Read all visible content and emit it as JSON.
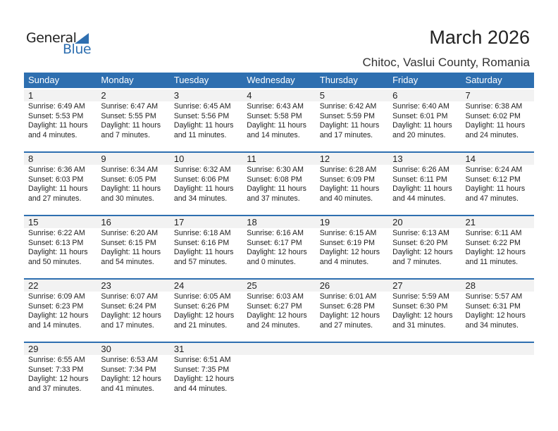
{
  "logo": {
    "general": "General",
    "blue": "Blue"
  },
  "title": "March 2026",
  "location": "Chitoc, Vaslui County, Romania",
  "colors": {
    "accent": "#2e6fb0",
    "strip": "#f2f2f2"
  },
  "weekdays": [
    "Sunday",
    "Monday",
    "Tuesday",
    "Wednesday",
    "Thursday",
    "Friday",
    "Saturday"
  ],
  "weeks": [
    [
      {
        "day": "1",
        "sunrise": "Sunrise: 6:49 AM",
        "sunset": "Sunset: 5:53 PM",
        "daylight": "Daylight: 11 hours",
        "minutes": "and 4 minutes."
      },
      {
        "day": "2",
        "sunrise": "Sunrise: 6:47 AM",
        "sunset": "Sunset: 5:55 PM",
        "daylight": "Daylight: 11 hours",
        "minutes": "and 7 minutes."
      },
      {
        "day": "3",
        "sunrise": "Sunrise: 6:45 AM",
        "sunset": "Sunset: 5:56 PM",
        "daylight": "Daylight: 11 hours",
        "minutes": "and 11 minutes."
      },
      {
        "day": "4",
        "sunrise": "Sunrise: 6:43 AM",
        "sunset": "Sunset: 5:58 PM",
        "daylight": "Daylight: 11 hours",
        "minutes": "and 14 minutes."
      },
      {
        "day": "5",
        "sunrise": "Sunrise: 6:42 AM",
        "sunset": "Sunset: 5:59 PM",
        "daylight": "Daylight: 11 hours",
        "minutes": "and 17 minutes."
      },
      {
        "day": "6",
        "sunrise": "Sunrise: 6:40 AM",
        "sunset": "Sunset: 6:01 PM",
        "daylight": "Daylight: 11 hours",
        "minutes": "and 20 minutes."
      },
      {
        "day": "7",
        "sunrise": "Sunrise: 6:38 AM",
        "sunset": "Sunset: 6:02 PM",
        "daylight": "Daylight: 11 hours",
        "minutes": "and 24 minutes."
      }
    ],
    [
      {
        "day": "8",
        "sunrise": "Sunrise: 6:36 AM",
        "sunset": "Sunset: 6:03 PM",
        "daylight": "Daylight: 11 hours",
        "minutes": "and 27 minutes."
      },
      {
        "day": "9",
        "sunrise": "Sunrise: 6:34 AM",
        "sunset": "Sunset: 6:05 PM",
        "daylight": "Daylight: 11 hours",
        "minutes": "and 30 minutes."
      },
      {
        "day": "10",
        "sunrise": "Sunrise: 6:32 AM",
        "sunset": "Sunset: 6:06 PM",
        "daylight": "Daylight: 11 hours",
        "minutes": "and 34 minutes."
      },
      {
        "day": "11",
        "sunrise": "Sunrise: 6:30 AM",
        "sunset": "Sunset: 6:08 PM",
        "daylight": "Daylight: 11 hours",
        "minutes": "and 37 minutes."
      },
      {
        "day": "12",
        "sunrise": "Sunrise: 6:28 AM",
        "sunset": "Sunset: 6:09 PM",
        "daylight": "Daylight: 11 hours",
        "minutes": "and 40 minutes."
      },
      {
        "day": "13",
        "sunrise": "Sunrise: 6:26 AM",
        "sunset": "Sunset: 6:11 PM",
        "daylight": "Daylight: 11 hours",
        "minutes": "and 44 minutes."
      },
      {
        "day": "14",
        "sunrise": "Sunrise: 6:24 AM",
        "sunset": "Sunset: 6:12 PM",
        "daylight": "Daylight: 11 hours",
        "minutes": "and 47 minutes."
      }
    ],
    [
      {
        "day": "15",
        "sunrise": "Sunrise: 6:22 AM",
        "sunset": "Sunset: 6:13 PM",
        "daylight": "Daylight: 11 hours",
        "minutes": "and 50 minutes."
      },
      {
        "day": "16",
        "sunrise": "Sunrise: 6:20 AM",
        "sunset": "Sunset: 6:15 PM",
        "daylight": "Daylight: 11 hours",
        "minutes": "and 54 minutes."
      },
      {
        "day": "17",
        "sunrise": "Sunrise: 6:18 AM",
        "sunset": "Sunset: 6:16 PM",
        "daylight": "Daylight: 11 hours",
        "minutes": "and 57 minutes."
      },
      {
        "day": "18",
        "sunrise": "Sunrise: 6:16 AM",
        "sunset": "Sunset: 6:17 PM",
        "daylight": "Daylight: 12 hours",
        "minutes": "and 0 minutes."
      },
      {
        "day": "19",
        "sunrise": "Sunrise: 6:15 AM",
        "sunset": "Sunset: 6:19 PM",
        "daylight": "Daylight: 12 hours",
        "minutes": "and 4 minutes."
      },
      {
        "day": "20",
        "sunrise": "Sunrise: 6:13 AM",
        "sunset": "Sunset: 6:20 PM",
        "daylight": "Daylight: 12 hours",
        "minutes": "and 7 minutes."
      },
      {
        "day": "21",
        "sunrise": "Sunrise: 6:11 AM",
        "sunset": "Sunset: 6:22 PM",
        "daylight": "Daylight: 12 hours",
        "minutes": "and 11 minutes."
      }
    ],
    [
      {
        "day": "22",
        "sunrise": "Sunrise: 6:09 AM",
        "sunset": "Sunset: 6:23 PM",
        "daylight": "Daylight: 12 hours",
        "minutes": "and 14 minutes."
      },
      {
        "day": "23",
        "sunrise": "Sunrise: 6:07 AM",
        "sunset": "Sunset: 6:24 PM",
        "daylight": "Daylight: 12 hours",
        "minutes": "and 17 minutes."
      },
      {
        "day": "24",
        "sunrise": "Sunrise: 6:05 AM",
        "sunset": "Sunset: 6:26 PM",
        "daylight": "Daylight: 12 hours",
        "minutes": "and 21 minutes."
      },
      {
        "day": "25",
        "sunrise": "Sunrise: 6:03 AM",
        "sunset": "Sunset: 6:27 PM",
        "daylight": "Daylight: 12 hours",
        "minutes": "and 24 minutes."
      },
      {
        "day": "26",
        "sunrise": "Sunrise: 6:01 AM",
        "sunset": "Sunset: 6:28 PM",
        "daylight": "Daylight: 12 hours",
        "minutes": "and 27 minutes."
      },
      {
        "day": "27",
        "sunrise": "Sunrise: 5:59 AM",
        "sunset": "Sunset: 6:30 PM",
        "daylight": "Daylight: 12 hours",
        "minutes": "and 31 minutes."
      },
      {
        "day": "28",
        "sunrise": "Sunrise: 5:57 AM",
        "sunset": "Sunset: 6:31 PM",
        "daylight": "Daylight: 12 hours",
        "minutes": "and 34 minutes."
      }
    ],
    [
      {
        "day": "29",
        "sunrise": "Sunrise: 6:55 AM",
        "sunset": "Sunset: 7:33 PM",
        "daylight": "Daylight: 12 hours",
        "minutes": "and 37 minutes."
      },
      {
        "day": "30",
        "sunrise": "Sunrise: 6:53 AM",
        "sunset": "Sunset: 7:34 PM",
        "daylight": "Daylight: 12 hours",
        "minutes": "and 41 minutes."
      },
      {
        "day": "31",
        "sunrise": "Sunrise: 6:51 AM",
        "sunset": "Sunset: 7:35 PM",
        "daylight": "Daylight: 12 hours",
        "minutes": "and 44 minutes."
      },
      null,
      null,
      null,
      null
    ]
  ]
}
